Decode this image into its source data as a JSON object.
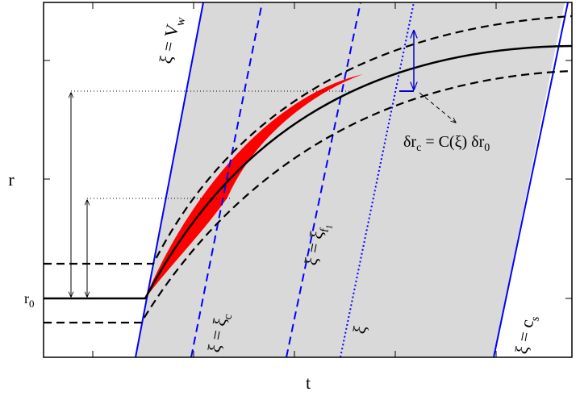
{
  "axes": {
    "x_label": "t",
    "y_label": "r",
    "r0": {
      "main": "r",
      "sub": "0"
    }
  },
  "lines": {
    "wall": {
      "main": "ξ = V",
      "sub": "w"
    },
    "critical": {
      "main": "ξ = ξ",
      "sub": "c"
    },
    "fixed": {
      "main": "ξ = ξ",
      "sub": "f",
      "subsub": "1"
    },
    "generic": {
      "main": "ξ"
    },
    "sound": {
      "main": "ξ = c",
      "sub": "s"
    }
  },
  "annotation": {
    "lhs": "δr",
    "lhs_sub": "c",
    "rhs": " = C(ξ) δr",
    "rhs_sub": "0"
  }
}
